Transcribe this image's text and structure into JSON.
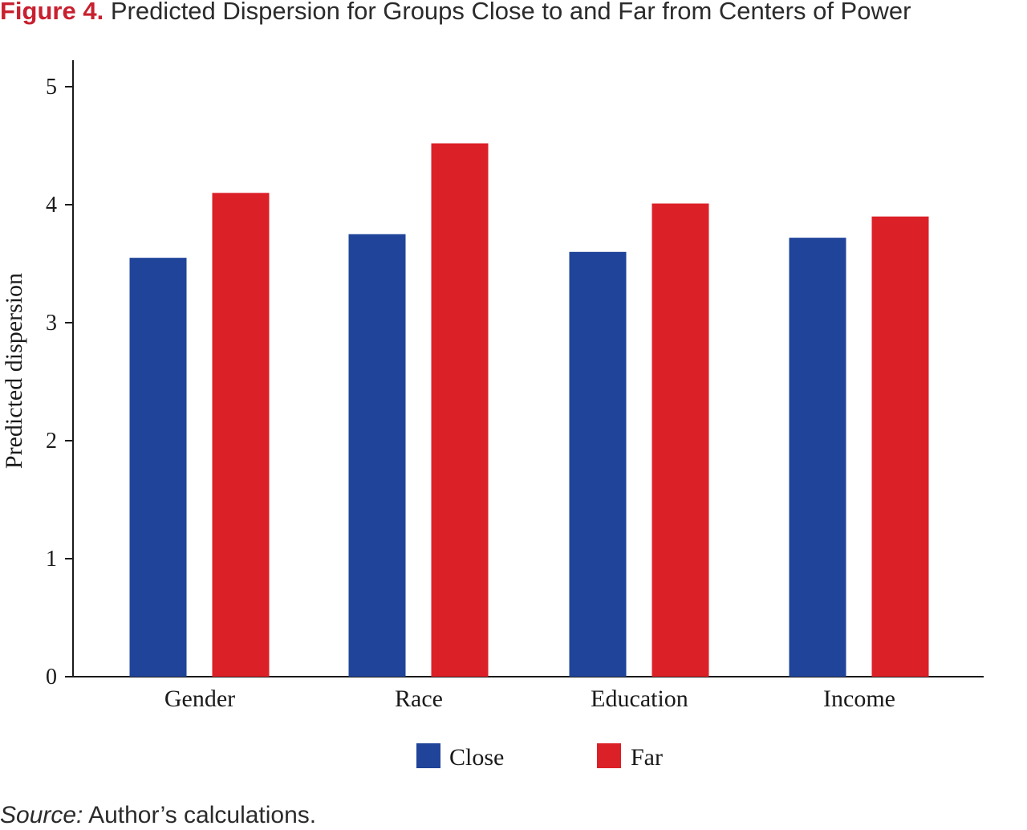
{
  "figure": {
    "label": "Figure 4.",
    "title": "Predicted Dispersion for Groups Close to and Far from Centers of Power"
  },
  "source": {
    "label": "Source:",
    "text": "Author’s calculations."
  },
  "colors": {
    "close": "#1f4499",
    "far": "#dc2027"
  },
  "chart_data": {
    "type": "bar",
    "title": "",
    "xlabel": "",
    "ylabel": "Predicted dispersion",
    "categories": [
      "Gender",
      "Race",
      "Education",
      "Income"
    ],
    "series": [
      {
        "name": "Close",
        "values": [
          3.55,
          3.75,
          3.6,
          3.72
        ]
      },
      {
        "name": "Far",
        "values": [
          4.1,
          4.52,
          4.01,
          3.9
        ]
      }
    ],
    "ylim": [
      0,
      5
    ],
    "yticks": [
      0,
      1,
      2,
      3,
      4,
      5
    ],
    "grid": false,
    "legend": "bottom-center"
  }
}
